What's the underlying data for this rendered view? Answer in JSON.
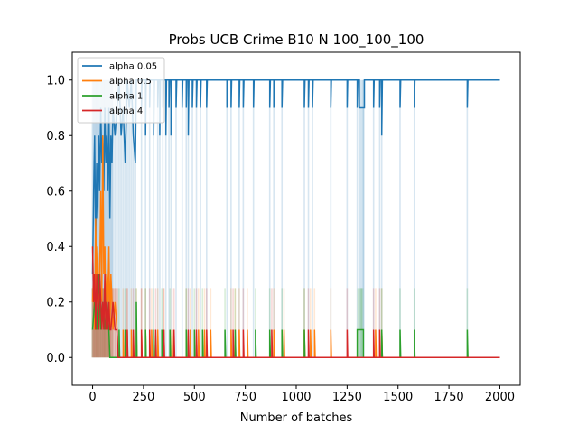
{
  "chart_data": {
    "type": "line",
    "title": "Probs UCB Crime B10 N 100_100_100",
    "xlabel": "Number of batches",
    "ylabel": "",
    "xlim": [
      -100,
      2100
    ],
    "ylim": [
      -0.1,
      1.1
    ],
    "xticks": [
      0,
      250,
      500,
      750,
      1000,
      1250,
      1500,
      1750,
      2000
    ],
    "yticks": [
      0.0,
      0.2,
      0.4,
      0.6,
      0.8,
      1.0
    ],
    "xtick_labels": [
      "0",
      "250",
      "500",
      "750",
      "1000",
      "1250",
      "1500",
      "1750",
      "2000"
    ],
    "ytick_labels": [
      "0.0",
      "0.2",
      "0.4",
      "0.6",
      "0.8",
      "1.0"
    ],
    "grid": false,
    "legend_position": "top-left",
    "series": [
      {
        "name": "alpha 0.05",
        "color": "#1f77b4",
        "baseline": 1.0,
        "band": [
          0.0,
          1.0
        ],
        "early": [
          [
            0,
            0.3
          ],
          [
            5,
            0.6
          ],
          [
            10,
            0.8
          ],
          [
            15,
            0.4
          ],
          [
            20,
            0.7
          ],
          [
            25,
            0.5
          ],
          [
            30,
            0.8
          ],
          [
            35,
            0.6
          ],
          [
            40,
            0.9
          ],
          [
            45,
            0.7
          ],
          [
            50,
            0.8
          ],
          [
            55,
            0.6
          ],
          [
            60,
            0.9
          ],
          [
            65,
            0.7
          ],
          [
            70,
            0.8
          ],
          [
            75,
            0.6
          ],
          [
            80,
            0.9
          ],
          [
            85,
            0.5
          ],
          [
            90,
            0.8
          ],
          [
            95,
            0.7
          ],
          [
            100,
            0.9
          ],
          [
            110,
            0.8
          ],
          [
            120,
            0.9
          ],
          [
            130,
            1.0
          ],
          [
            140,
            0.8
          ],
          [
            150,
            0.9
          ],
          [
            160,
            0.7
          ],
          [
            170,
            1.0
          ],
          [
            180,
            0.9
          ],
          [
            190,
            1.0
          ],
          [
            200,
            0.8
          ],
          [
            210,
            0.7
          ]
        ],
        "dips": [
          [
            240,
            0.9
          ],
          [
            260,
            0.8
          ],
          [
            280,
            0.9
          ],
          [
            300,
            0.8
          ],
          [
            320,
            0.9
          ],
          [
            330,
            0.8
          ],
          [
            345,
            0.9
          ],
          [
            360,
            0.8
          ],
          [
            375,
            0.9
          ],
          [
            385,
            0.8
          ],
          [
            410,
            0.9
          ],
          [
            440,
            0.9
          ],
          [
            460,
            0.9
          ],
          [
            470,
            0.8
          ],
          [
            490,
            0.9
          ],
          [
            510,
            0.9
          ],
          [
            530,
            0.9
          ],
          [
            560,
            0.9
          ],
          [
            660,
            0.9
          ],
          [
            680,
            0.9
          ],
          [
            720,
            0.9
          ],
          [
            740,
            0.9
          ],
          [
            790,
            0.9
          ],
          [
            870,
            0.9
          ],
          [
            890,
            0.9
          ],
          [
            930,
            0.9
          ],
          [
            1040,
            0.9
          ],
          [
            1060,
            0.9
          ],
          [
            1080,
            0.9
          ],
          [
            1170,
            0.9
          ],
          [
            1250,
            0.9
          ],
          [
            1300,
            0.9
          ],
          [
            1330,
            0.8
          ],
          [
            1380,
            0.9
          ],
          [
            1410,
            0.9
          ],
          [
            1420,
            0.8
          ],
          [
            1510,
            0.9
          ],
          [
            1580,
            0.9
          ],
          [
            1840,
            0.9
          ]
        ],
        "flat_segments": [
          [
            1310,
            1335,
            0.9
          ]
        ]
      },
      {
        "name": "alpha 0.5",
        "color": "#ff7f0e",
        "baseline": 0.0,
        "band": [
          0.0,
          0.25
        ],
        "early": [
          [
            0,
            0.2
          ],
          [
            5,
            0.3
          ],
          [
            10,
            0.1
          ],
          [
            15,
            0.5
          ],
          [
            20,
            0.2
          ],
          [
            25,
            0.4
          ],
          [
            30,
            0.1
          ],
          [
            35,
            0.3
          ],
          [
            40,
            0.6
          ],
          [
            45,
            0.2
          ],
          [
            50,
            0.8
          ],
          [
            55,
            0.3
          ],
          [
            60,
            0.4
          ],
          [
            65,
            0.1
          ],
          [
            70,
            0.3
          ],
          [
            75,
            0.2
          ],
          [
            80,
            0.4
          ],
          [
            85,
            0.1
          ],
          [
            90,
            0.3
          ],
          [
            95,
            0.2
          ],
          [
            100,
            0.1
          ],
          [
            110,
            0.2
          ],
          [
            120,
            0.1
          ]
        ],
        "dips": [
          [
            150,
            0.1
          ],
          [
            170,
            0.1
          ],
          [
            190,
            0.1
          ],
          [
            215,
            0.1
          ],
          [
            240,
            0.1
          ],
          [
            260,
            0.1
          ],
          [
            290,
            0.1
          ],
          [
            320,
            0.1
          ],
          [
            350,
            0.1
          ],
          [
            390,
            0.1
          ],
          [
            460,
            0.1
          ],
          [
            480,
            0.1
          ],
          [
            520,
            0.1
          ],
          [
            550,
            0.1
          ],
          [
            580,
            0.1
          ],
          [
            680,
            0.1
          ],
          [
            700,
            0.1
          ],
          [
            720,
            0.1
          ],
          [
            760,
            0.1
          ],
          [
            890,
            0.1
          ],
          [
            940,
            0.1
          ],
          [
            1040,
            0.1
          ],
          [
            1070,
            0.1
          ],
          [
            1090,
            0.1
          ],
          [
            1170,
            0.1
          ],
          [
            1390,
            0.1
          ],
          [
            1420,
            0.1
          ]
        ]
      },
      {
        "name": "alpha 1",
        "color": "#2ca02c",
        "baseline": 0.0,
        "band": [
          0.0,
          0.25
        ],
        "early": [
          [
            0,
            0.1
          ],
          [
            10,
            0.2
          ],
          [
            20,
            0.1
          ],
          [
            30,
            0.3
          ],
          [
            40,
            0.1
          ],
          [
            50,
            0.2
          ],
          [
            60,
            0.1
          ],
          [
            70,
            0.2
          ],
          [
            80,
            0.1
          ]
        ],
        "dips": [
          [
            130,
            0.1
          ],
          [
            160,
            0.1
          ],
          [
            215,
            0.2
          ],
          [
            260,
            0.1
          ],
          [
            300,
            0.1
          ],
          [
            340,
            0.1
          ],
          [
            380,
            0.1
          ],
          [
            460,
            0.1
          ],
          [
            500,
            0.1
          ],
          [
            540,
            0.1
          ],
          [
            650,
            0.1
          ],
          [
            700,
            0.1
          ],
          [
            800,
            0.1
          ],
          [
            870,
            0.1
          ],
          [
            930,
            0.1
          ],
          [
            1040,
            0.1
          ],
          [
            1320,
            0.2
          ],
          [
            1420,
            0.1
          ],
          [
            1510,
            0.1
          ],
          [
            1580,
            0.1
          ],
          [
            1840,
            0.1
          ]
        ],
        "flat_segments": [
          [
            1300,
            1330,
            0.1
          ]
        ]
      },
      {
        "name": "alpha 4",
        "color": "#d62728",
        "baseline": 0.0,
        "band": [
          0.0,
          0.25
        ],
        "early": [
          [
            0,
            0.4
          ],
          [
            5,
            0.2
          ],
          [
            10,
            0.3
          ],
          [
            15,
            0.1
          ],
          [
            20,
            0.3
          ],
          [
            25,
            0.2
          ],
          [
            30,
            0.1
          ],
          [
            35,
            0.3
          ],
          [
            40,
            0.2
          ],
          [
            45,
            0.1
          ],
          [
            50,
            0.2
          ],
          [
            55,
            0.1
          ],
          [
            60,
            0.3
          ],
          [
            65,
            0.1
          ],
          [
            70,
            0.2
          ],
          [
            75,
            0.1
          ],
          [
            80,
            0.2
          ],
          [
            85,
            0.1
          ],
          [
            90,
            0.1
          ],
          [
            100,
            0.2
          ],
          [
            110,
            0.1
          ],
          [
            120,
            0.1
          ]
        ],
        "dips": [
          [
            170,
            0.1
          ],
          [
            200,
            0.1
          ],
          [
            240,
            0.1
          ],
          [
            280,
            0.1
          ],
          [
            310,
            0.1
          ],
          [
            350,
            0.1
          ],
          [
            400,
            0.1
          ],
          [
            470,
            0.1
          ],
          [
            510,
            0.1
          ],
          [
            560,
            0.1
          ],
          [
            690,
            0.1
          ],
          [
            740,
            0.1
          ],
          [
            880,
            0.1
          ],
          [
            1060,
            0.1
          ],
          [
            1250,
            0.1
          ],
          [
            1380,
            0.1
          ],
          [
            1410,
            0.1
          ]
        ]
      }
    ]
  }
}
